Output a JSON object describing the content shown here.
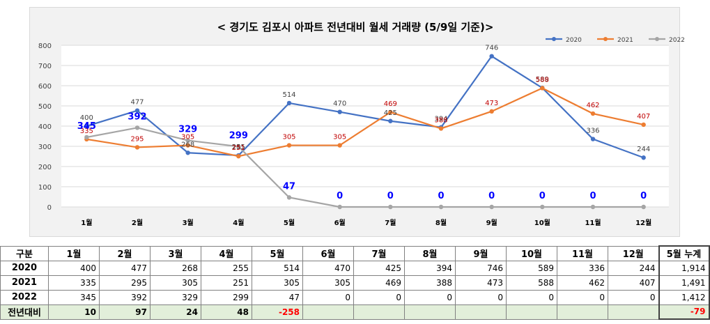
{
  "chart_data": {
    "type": "line",
    "title": "< 경기도 김포시 아파트 전년대비 월세 거래량 (5/9일 기준)>",
    "categories": [
      "1월",
      "2월",
      "3월",
      "4월",
      "5월",
      "6월",
      "7월",
      "8월",
      "9월",
      "10월",
      "11월",
      "12월"
    ],
    "ylim": [
      0,
      800
    ],
    "yticks": [
      0,
      100,
      200,
      300,
      400,
      500,
      600,
      700,
      800
    ],
    "grid": true,
    "legend_position": "top-right",
    "series": [
      {
        "name": "2020",
        "color": "#4472c4",
        "values": [
          400,
          477,
          268,
          255,
          514,
          470,
          425,
          394,
          746,
          589,
          336,
          244
        ]
      },
      {
        "name": "2021",
        "color": "#ed7d31",
        "values": [
          335,
          295,
          305,
          251,
          305,
          305,
          469,
          388,
          473,
          588,
          462,
          407
        ]
      },
      {
        "name": "2022",
        "color": "#a5a5a5",
        "values": [
          345,
          392,
          329,
          299,
          47,
          0,
          0,
          0,
          0,
          0,
          0,
          0
        ]
      }
    ],
    "label_colors": {
      "2020": "#404040",
      "2021": "#c00000",
      "2022": "#0000ff"
    }
  },
  "table": {
    "headers": [
      "구분",
      "1월",
      "2월",
      "3월",
      "4월",
      "5월",
      "6월",
      "7월",
      "8월",
      "9월",
      "10월",
      "11월",
      "12월",
      "5월 누계"
    ],
    "rows": [
      {
        "label": "2020",
        "cells": [
          "400",
          "477",
          "268",
          "255",
          "514",
          "470",
          "425",
          "394",
          "746",
          "589",
          "336",
          "244",
          "1,914"
        ]
      },
      {
        "label": "2021",
        "cells": [
          "335",
          "295",
          "305",
          "251",
          "305",
          "305",
          "469",
          "388",
          "473",
          "588",
          "462",
          "407",
          "1,491"
        ]
      },
      {
        "label": "2022",
        "cells": [
          "345",
          "392",
          "329",
          "299",
          "47",
          "0",
          "0",
          "0",
          "0",
          "0",
          "0",
          "0",
          "1,412"
        ]
      },
      {
        "label": "전년대비",
        "cells": [
          "10",
          "97",
          "24",
          "48",
          "-258",
          "",
          "",
          "",
          "",
          "",
          "",
          "",
          "-79"
        ]
      }
    ]
  }
}
